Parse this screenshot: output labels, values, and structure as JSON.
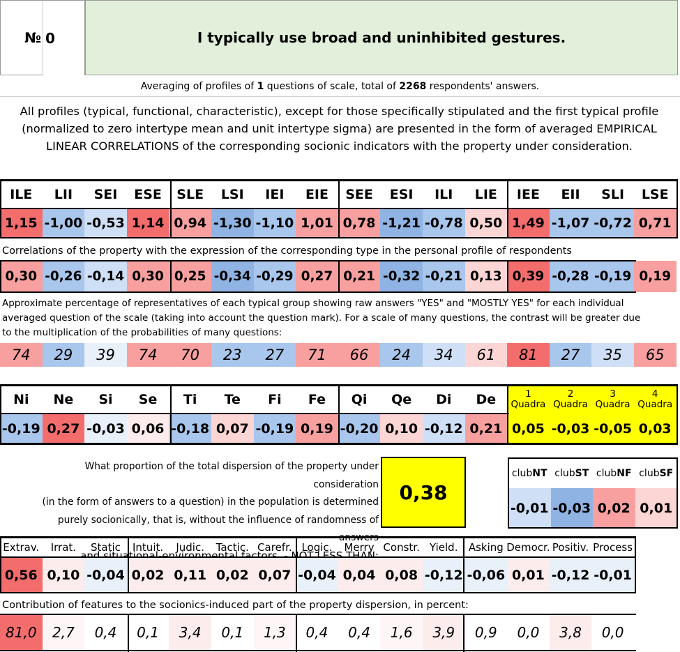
{
  "header": {
    "number_label": "№",
    "number_value": "0",
    "question": "I typically use broad and uninhibited gestures."
  },
  "summary": {
    "prefix": "Averaging of profiles of",
    "questions_count": "1",
    "middle": "questions of scale, total of",
    "respondents_count": "2268",
    "suffix": "respondents' answers."
  },
  "description": "All profiles (typical, functional, characteristic), except for those specifically stipulated and the first typical profile (normalized to zero intertype mean and unit intertype sigma) are presented in the form of averaged EMPIRICAL LINEAR CORRELATIONS of the corresponding socionic indicators with the property under consideration.",
  "types": {
    "headers": [
      "ILE",
      "LII",
      "SEI",
      "ESE",
      "SLE",
      "LSI",
      "IEI",
      "EIE",
      "SEE",
      "ESI",
      "ILI",
      "LIE",
      "IEE",
      "EII",
      "SLI",
      "LSE"
    ],
    "normalized": [
      "1,15",
      "-1,00",
      "-0,53",
      "1,14",
      "0,94",
      "-1,30",
      "-1,10",
      "1,01",
      "0,78",
      "-1,21",
      "-0,78",
      "0,50",
      "1,49",
      "-1,07",
      "-0,72",
      "0,71"
    ],
    "correlation_caption": "Correlations of the property with the expression of the corresponding type in the personal profile of respondents",
    "correlations": [
      "0,30",
      "-0,26",
      "-0,14",
      "0,30",
      "0,25",
      "-0,34",
      "-0,29",
      "0,27",
      "0,21",
      "-0,32",
      "-0,21",
      "0,13",
      "0,39",
      "-0,28",
      "-0,19",
      "0,19"
    ],
    "percentage_caption": "Approximate percentage of representatives of each typical group showing raw answers \"YES\" and \"MOSTLY YES\" for each individual averaged question of the scale (taking into account the question mark). For a scale of many questions, the contrast will be greater due to the multiplication of the probabilities of many questions:",
    "percentages": [
      "74",
      "29",
      "39",
      "74",
      "70",
      "23",
      "27",
      "71",
      "66",
      "24",
      "34",
      "61",
      "81",
      "27",
      "35",
      "65"
    ]
  },
  "functions": {
    "headers": [
      "Ni",
      "Ne",
      "Si",
      "Se",
      "Ti",
      "Te",
      "Fi",
      "Fe",
      "Qi",
      "Qe",
      "Di",
      "De"
    ],
    "values": [
      "-0,19",
      "0,27",
      "-0,03",
      "0,06",
      "-0,18",
      "0,07",
      "-0,19",
      "0,19",
      "-0,20",
      "0,10",
      "-0,12",
      "0,21"
    ],
    "quadras": [
      {
        "num": "1",
        "label": "Quadra",
        "value": "0,05"
      },
      {
        "num": "2",
        "label": "Quadra",
        "value": "-0,03"
      },
      {
        "num": "3",
        "label": "Quadra",
        "value": "-0,05"
      },
      {
        "num": "4",
        "label": "Quadra",
        "value": "0,03"
      }
    ]
  },
  "dispersion": {
    "text_lines": [
      "What proportion of the total dispersion of the property under consideration",
      "(in the form of answers to a question) in the population is determined",
      "purely socionically, that is, without the influence of randomness of answers",
      "and situational-environmental factors. - NOT LESS THAN:"
    ],
    "value": "0,38"
  },
  "clubs": [
    {
      "prefix": "club",
      "bold": "NT",
      "value": "-0,01"
    },
    {
      "prefix": "club",
      "bold": "ST",
      "value": "-0,03"
    },
    {
      "prefix": "club",
      "bold": "NF",
      "value": "0,02"
    },
    {
      "prefix": "club",
      "bold": "SF",
      "value": "0,01"
    }
  ],
  "traits": {
    "headers": [
      "Extrav.",
      "Irrat.",
      "Static",
      "Intuit.",
      "Judic.",
      "Tactic.",
      "Carefr.",
      "Logic.",
      "Merry",
      "Constr.",
      "Yield.",
      "Asking",
      "Democr.",
      "Positiv.",
      "Process"
    ],
    "values": [
      "0,56",
      "0,10",
      "-0,04",
      "0,02",
      "0,11",
      "0,02",
      "0,07",
      "-0,04",
      "0,04",
      "0,08",
      "-0,12",
      "-0,06",
      "0,01",
      "-0,12",
      "-0,01"
    ],
    "contribution_caption": "Contribution of features to the socionics-induced part of the property dispersion, in percent:",
    "contributions": [
      "81,0",
      "2,7",
      "0,4",
      "0,1",
      "3,4",
      "0,1",
      "1,3",
      "0,4",
      "0,4",
      "1,6",
      "3,9",
      "0,9",
      "0,0",
      "3,8",
      "0,0"
    ]
  },
  "colors": {
    "header_bg": "#e2efda",
    "yellow": "#ffff00",
    "strong_red": "#f46d6d",
    "red": "#f8a0a0",
    "light_red": "#fcd5d5",
    "faint_red": "#fdecec",
    "strong_blue": "#8fb4e3",
    "blue": "#a9c6ec",
    "light_blue": "#cfdff5",
    "faint_blue": "#e8f0fa"
  }
}
